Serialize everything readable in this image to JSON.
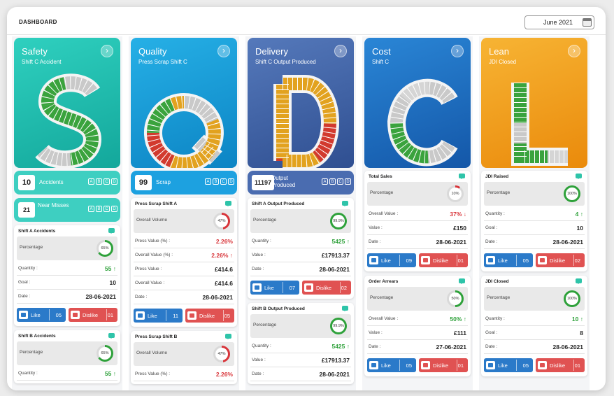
{
  "header": {
    "title": "DASHBOARD",
    "date": "June 2021"
  },
  "colors": {
    "safety": "#27c2b2",
    "quality": "#1e9ad8",
    "delivery": "#3e62a8",
    "cost": "#1c6fc2",
    "lean": "#f1a119"
  },
  "columns": [
    {
      "key": "safety",
      "title": "Safety",
      "subtitle": "Shift C Accident",
      "letter": "S",
      "kpis": [
        {
          "value": "10",
          "label": "Accidents"
        },
        {
          "value": "21",
          "label": "Near Misses"
        }
      ],
      "cards": [
        {
          "title": "Shift A Accidents",
          "pct": 65,
          "pct_text": "65%",
          "rows": [
            {
              "k": "Percentage"
            },
            {
              "k": "Quantity :",
              "v": "55 ↑",
              "c": "green"
            },
            {
              "k": "Goal :",
              "v": "10"
            },
            {
              "k": "Date :",
              "v": "28-06-2021"
            }
          ],
          "like": "05",
          "dislike": "01"
        },
        {
          "title": "Shift B Accidents",
          "pct": 65,
          "pct_text": "65%",
          "rows": [
            {
              "k": "Percentage"
            },
            {
              "k": "Quantity :",
              "v": "55 ↑",
              "c": "green"
            }
          ]
        }
      ]
    },
    {
      "key": "quality",
      "title": "Quality",
      "subtitle": "Press Scrap Shift C",
      "letter": "Q",
      "kpis": [
        {
          "value": "99",
          "label": "Scrap"
        }
      ],
      "cards": [
        {
          "title": "Press Scrap Shift A",
          "pct": 47,
          "pct_text": "47%",
          "ring_color": "#d8353a",
          "rows": [
            {
              "k": "Overall Volume"
            },
            {
              "k": "Press Value (%) :",
              "v": "2.26%",
              "c": "red"
            },
            {
              "k": "Overall Value (%) :",
              "v": "2.26% ↑",
              "c": "red"
            },
            {
              "k": "Press Value :",
              "v": "£414.6"
            },
            {
              "k": "Overall Value :",
              "v": "£414.6"
            },
            {
              "k": "Date :",
              "v": "28-06-2021"
            }
          ],
          "like": "11",
          "dislike": "05"
        },
        {
          "title": "Press Scrap Shift B",
          "pct": 47,
          "pct_text": "47%",
          "ring_color": "#d8353a",
          "rows": [
            {
              "k": "Overall Volume"
            },
            {
              "k": "Press Value (%) :",
              "v": "2.26%",
              "c": "red"
            }
          ]
        }
      ]
    },
    {
      "key": "delivery",
      "title": "Delivery",
      "subtitle": "Shift C Output Produced",
      "letter": "D",
      "kpis": [
        {
          "value": "11197",
          "label": "Output Produced"
        }
      ],
      "cards": [
        {
          "title": "Shift A Output Produced",
          "pct": 99.9,
          "pct_text": "99.9%",
          "rows": [
            {
              "k": "Percentage"
            },
            {
              "k": "Quantity :",
              "v": "5425 ↑",
              "c": "green"
            },
            {
              "k": "Value :",
              "v": "£17913.37"
            },
            {
              "k": "Date :",
              "v": "28-06-2021"
            }
          ],
          "like": "07",
          "dislike": "02"
        },
        {
          "title": "Shift B Output Produced",
          "pct": 99.9,
          "pct_text": "99.9%",
          "rows": [
            {
              "k": "Percentage"
            },
            {
              "k": "Quantity :",
              "v": "5425 ↑",
              "c": "green"
            },
            {
              "k": "Value :",
              "v": "£17913.37"
            },
            {
              "k": "Date :",
              "v": "28-06-2021"
            }
          ]
        }
      ]
    },
    {
      "key": "cost",
      "title": "Cost",
      "subtitle": "Shift C",
      "letter": "C",
      "kpis": [],
      "cards": [
        {
          "title": "Total Sales",
          "pct": 10,
          "pct_text": "10%",
          "ring_color": "#d8353a",
          "rows": [
            {
              "k": "Percentage"
            },
            {
              "k": "Overall Value :",
              "v": "37% ↓",
              "c": "red"
            },
            {
              "k": "Value :",
              "v": "£150"
            },
            {
              "k": "Date :",
              "v": "28-06-2021"
            }
          ],
          "like": "09",
          "dislike": "01"
        },
        {
          "title": "Order Arrears",
          "pct": 50,
          "pct_text": "50%",
          "rows": [
            {
              "k": "Percentage"
            },
            {
              "k": "Overall Value :",
              "v": "50% ↑",
              "c": "green"
            },
            {
              "k": "Value :",
              "v": "£111"
            },
            {
              "k": "Date :",
              "v": "27-06-2021"
            }
          ],
          "like": "05",
          "dislike": "01"
        }
      ]
    },
    {
      "key": "lean",
      "title": "Lean",
      "subtitle": "JDI Closed",
      "letter": "L",
      "kpis": [],
      "cards": [
        {
          "title": "JDI Raised",
          "pct": 100,
          "pct_text": "100%",
          "rows": [
            {
              "k": "Percentage"
            },
            {
              "k": "Quantity :",
              "v": "4 ↑",
              "c": "green"
            },
            {
              "k": "Goal :",
              "v": "10"
            },
            {
              "k": "Date :",
              "v": "28-06-2021"
            }
          ],
          "like": "05",
          "dislike": "02"
        },
        {
          "title": "JDI Closed",
          "pct": 100,
          "pct_text": "100%",
          "rows": [
            {
              "k": "Percentage"
            },
            {
              "k": "Quantity :",
              "v": "10 ↑",
              "c": "green"
            },
            {
              "k": "Goal :",
              "v": "8"
            },
            {
              "k": "Date :",
              "v": "28-06-2021"
            }
          ],
          "like": "05",
          "dislike": "01"
        }
      ]
    }
  ],
  "labels": {
    "like": "Like",
    "dislike": "Dislike",
    "abcd": [
      "A",
      "B",
      "C",
      "D"
    ]
  }
}
